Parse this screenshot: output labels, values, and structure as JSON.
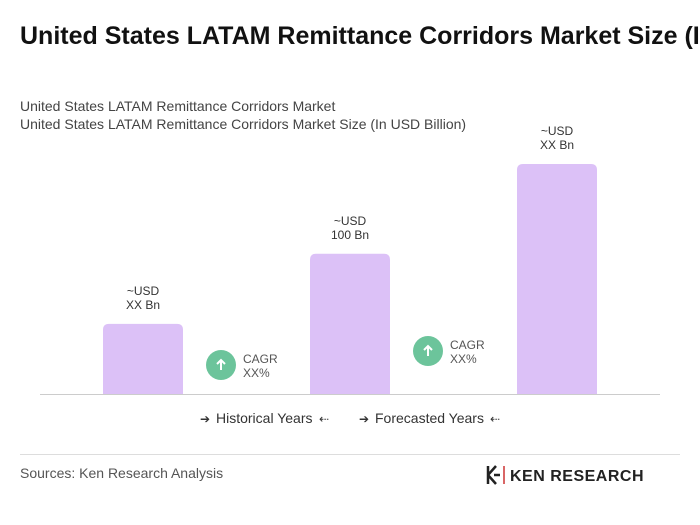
{
  "chart_data": {
    "type": "bar",
    "title": "United States LATAM Remittance Corridors Market Size (In USD Billion)",
    "subtitle": [
      "United States LATAM Remittance Corridors Market",
      "United States LATAM Remittance Corridors Market Size (In USD Billion)"
    ],
    "categories": [
      null,
      null,
      null
    ],
    "values": [
      50,
      100,
      164
    ],
    "value_labels": [
      "~USD XX Bn",
      "~USD 100 Bn",
      "~USD XX Bn"
    ],
    "color": "#dcc1f7",
    "annotations": [
      {
        "label": "CAGR",
        "value": "XX%"
      },
      {
        "label": "CAGR",
        "value": "XX%"
      }
    ],
    "legend": [
      "Historical Years",
      "Forecasted Years"
    ],
    "source": "Sources: Ken Research Analysis",
    "logo": "KEN RESEARCH"
  }
}
